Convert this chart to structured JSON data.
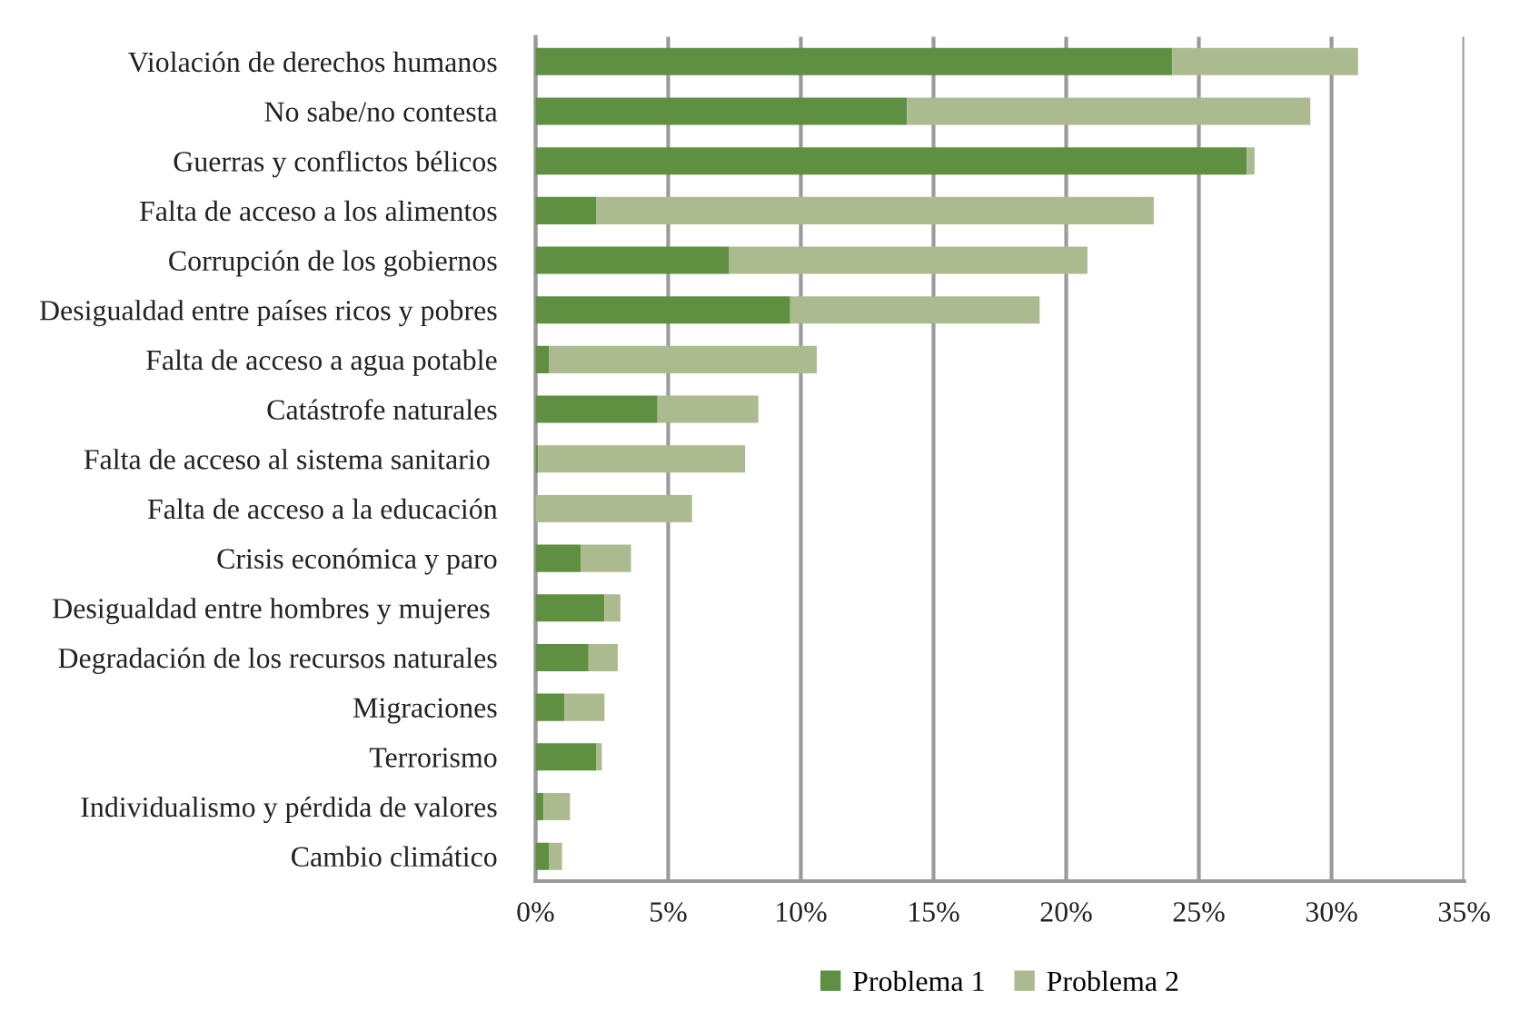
{
  "chart_data": {
    "type": "bar",
    "orientation": "horizontal",
    "stacked": true,
    "categories": [
      "Violación de derechos humanos",
      "No sabe/no contesta",
      "Guerras y conflictos bélicos",
      "Falta de acceso a los alimentos",
      "Corrupción de los gobiernos",
      "Desigualdad entre países ricos y pobres",
      "Falta de acceso a agua potable",
      "Catástrofe naturales",
      "Falta de acceso al sistema sanitario ",
      "Falta de acceso a la educación",
      "Crisis económica y paro",
      "Desigualdad entre hombres y mujeres ",
      "Degradación de los recursos naturales",
      "Migraciones",
      "Terrorismo",
      "Individualismo y pérdida de valores",
      "Cambio climático"
    ],
    "series": [
      {
        "name": "Problema 1",
        "color": "#5f9041",
        "values": [
          24.0,
          14.0,
          26.8,
          2.3,
          7.3,
          9.6,
          0.5,
          4.6,
          0.1,
          0,
          1.7,
          2.6,
          2.0,
          1.1,
          2.3,
          0.3,
          0.5
        ]
      },
      {
        "name": "Problema 2",
        "color": "#abbb8f",
        "values": [
          7.0,
          15.2,
          0.3,
          21.0,
          13.5,
          9.4,
          10.1,
          3.8,
          7.8,
          5.9,
          1.9,
          0.6,
          1.1,
          1.5,
          0.2,
          1.0,
          0.5
        ]
      }
    ],
    "xlim": [
      0,
      35
    ],
    "xticks": [
      {
        "value": 0,
        "label": "0%"
      },
      {
        "value": 5,
        "label": "5%"
      },
      {
        "value": 10,
        "label": "10%"
      },
      {
        "value": 15,
        "label": "15%"
      },
      {
        "value": 20,
        "label": "20%"
      },
      {
        "value": 25,
        "label": "25%"
      },
      {
        "value": 30,
        "label": "30%"
      },
      {
        "value": 35,
        "label": "35%"
      }
    ],
    "grid": "x",
    "legend": "bottom"
  }
}
